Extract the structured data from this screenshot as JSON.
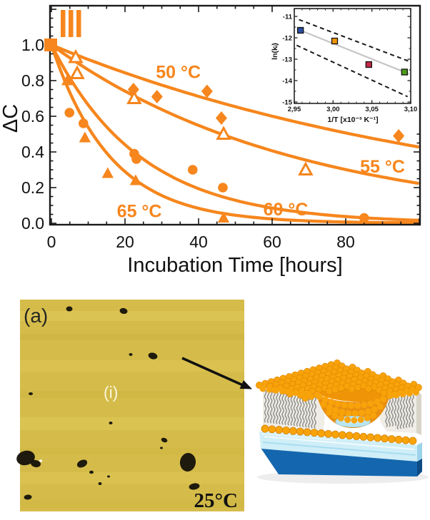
{
  "chart_data": [
    {
      "type": "scatter",
      "title": "",
      "panel_marker": "III",
      "xlabel": "Incubation Time [hours]",
      "ylabel": "ΔC",
      "xlim": [
        0,
        100
      ],
      "ylim": [
        0,
        1.22
      ],
      "grid": false,
      "accent_color": "#f6861d",
      "xticks": [
        {
          "v": 0,
          "label": "0"
        },
        {
          "v": 20,
          "label": "20"
        },
        {
          "v": 40,
          "label": "40"
        },
        {
          "v": 60,
          "label": "60"
        },
        {
          "v": 80,
          "label": "80"
        }
      ],
      "yticks": [
        {
          "v": 0.0,
          "label": "0.0"
        },
        {
          "v": 0.2,
          "label": "0.2"
        },
        {
          "v": 0.4,
          "label": "0.4"
        },
        {
          "v": 0.6,
          "label": "0.6"
        },
        {
          "v": 0.8,
          "label": "0.8"
        },
        {
          "v": 1.0,
          "label": "1.0"
        }
      ],
      "series": [
        {
          "name": "50 °C",
          "marker": "diamond-filled",
          "color": "#f6861d",
          "fit": "exp(-k*t)",
          "k_per_hour": 0.0085,
          "points": [
            [
              0,
              1.0
            ],
            [
              22.3,
              0.75
            ],
            [
              28.7,
              0.71
            ],
            [
              42.3,
              0.74
            ],
            [
              46.2,
              0.59
            ],
            [
              94.4,
              0.49
            ]
          ]
        },
        {
          "name": "55 °C",
          "marker": "triangle-open",
          "color": "#f6861d",
          "fit": "exp(-k*t)",
          "k_per_hour": 0.015,
          "points": [
            [
              0,
              1.0
            ],
            [
              6.6,
              0.93
            ],
            [
              7.0,
              0.84
            ],
            [
              22.5,
              0.7
            ],
            [
              46.8,
              0.5
            ],
            [
              69.1,
              0.3
            ]
          ]
        },
        {
          "name": "60 °C",
          "marker": "circle-filled",
          "color": "#f6861d",
          "fit": "exp(-k*t)",
          "k_per_hour": 0.041,
          "points": [
            [
              0,
              1.0
            ],
            [
              4.9,
              0.62
            ],
            [
              8.7,
              0.56
            ],
            [
              22.5,
              0.39
            ],
            [
              23.1,
              0.36
            ],
            [
              38.4,
              0.3
            ],
            [
              46.6,
              0.2
            ],
            [
              85,
              0.03
            ]
          ]
        },
        {
          "name": "65 °C",
          "marker": "triangle-filled",
          "color": "#f6861d",
          "fit": "exp(-k*t)",
          "k_per_hour": 0.062,
          "points": [
            [
              0,
              1.0
            ],
            [
              4.3,
              0.8
            ],
            [
              9.1,
              0.48
            ],
            [
              15.3,
              0.28
            ],
            [
              22.9,
              0.24
            ],
            [
              46.8,
              0.03
            ]
          ]
        }
      ],
      "series_labels": [
        {
          "text": "50 °C",
          "x": 34.5,
          "y": 0.85
        },
        {
          "text": "55 °C",
          "x": 90.0,
          "y": 0.32
        },
        {
          "text": "60 °C",
          "x": 63.7,
          "y": 0.08
        },
        {
          "text": "65 °C",
          "x": 23.9,
          "y": 0.07
        }
      ]
    },
    {
      "type": "scatter",
      "title": "",
      "xlabel": "1/T [x10⁻³ K⁻¹]",
      "ylabel": "ln(kᵢ)",
      "xlim": [
        2.95,
        3.1
      ],
      "ylim": [
        -15,
        -11
      ],
      "legend": "none",
      "xticks": [
        {
          "v": 2.95,
          "label": "2,95"
        },
        {
          "v": 3.0,
          "label": "3,00"
        },
        {
          "v": 3.05,
          "label": "3,05"
        },
        {
          "v": 3.1,
          "label": "3,10"
        }
      ],
      "yticks": [
        {
          "v": -11,
          "label": "-11"
        },
        {
          "v": -12,
          "label": "-12"
        },
        {
          "v": -13,
          "label": "-13"
        },
        {
          "v": -14,
          "label": "-14"
        },
        {
          "v": -15,
          "label": "-15"
        }
      ],
      "points": [
        {
          "x": 2.958,
          "y": -11.65,
          "color": "#2b4ea2"
        },
        {
          "x": 3.002,
          "y": -12.15,
          "color": "#f09500"
        },
        {
          "x": 3.046,
          "y": -13.25,
          "color": "#c62846"
        },
        {
          "x": 3.092,
          "y": -13.6,
          "color": "#4e9c1a"
        }
      ],
      "fit_line": {
        "x": [
          2.953,
          3.098
        ],
        "y": [
          -11.58,
          -13.69
        ],
        "color": "#c6c6c6"
      },
      "confidence_bands": [
        {
          "x": [
            2.956,
            3.098
          ],
          "y": [
            -11.15,
            -13.1
          ]
        },
        {
          "x": [
            2.953,
            3.096
          ],
          "y": [
            -12.35,
            -14.75
          ]
        }
      ]
    }
  ],
  "afm_panel": {
    "label": "(a)",
    "region_label": "(i)",
    "temperature": "25°C",
    "base_color": "#d5bc4a",
    "defect_color": "#16130a"
  },
  "schematic": {
    "head_color": "#f9a30a",
    "tail_color": "#90908a",
    "water_color": "#cfeef8",
    "substrate_color": "#1467ae"
  }
}
